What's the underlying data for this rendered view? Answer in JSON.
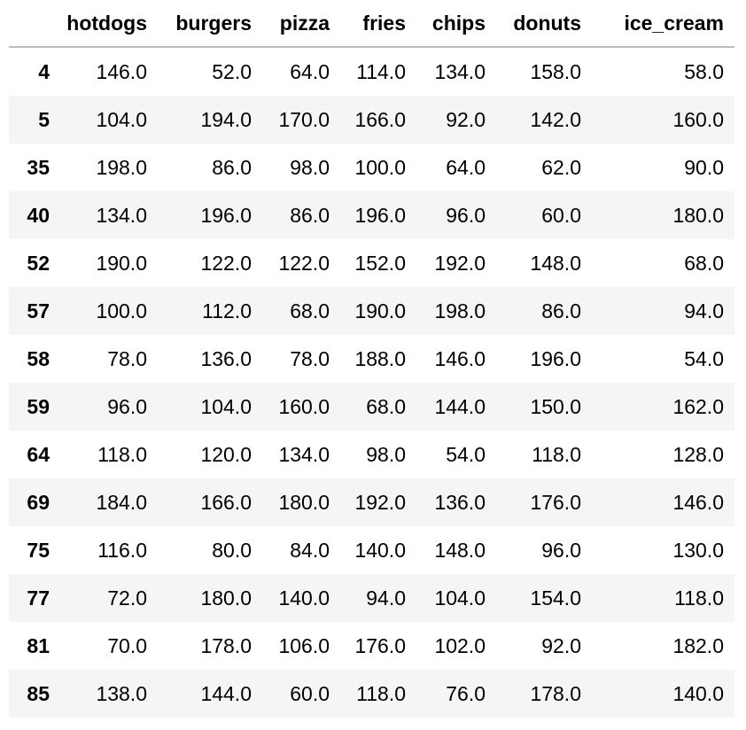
{
  "columns": [
    "",
    "hotdogs",
    "burgers",
    "pizza",
    "fries",
    "chips",
    "donuts",
    "ice_cream"
  ],
  "rows": [
    {
      "index": "4",
      "values": [
        "146.0",
        "52.0",
        "64.0",
        "114.0",
        "134.0",
        "158.0",
        "58.0"
      ]
    },
    {
      "index": "5",
      "values": [
        "104.0",
        "194.0",
        "170.0",
        "166.0",
        "92.0",
        "142.0",
        "160.0"
      ]
    },
    {
      "index": "35",
      "values": [
        "198.0",
        "86.0",
        "98.0",
        "100.0",
        "64.0",
        "62.0",
        "90.0"
      ]
    },
    {
      "index": "40",
      "values": [
        "134.0",
        "196.0",
        "86.0",
        "196.0",
        "96.0",
        "60.0",
        "180.0"
      ]
    },
    {
      "index": "52",
      "values": [
        "190.0",
        "122.0",
        "122.0",
        "152.0",
        "192.0",
        "148.0",
        "68.0"
      ]
    },
    {
      "index": "57",
      "values": [
        "100.0",
        "112.0",
        "68.0",
        "190.0",
        "198.0",
        "86.0",
        "94.0"
      ]
    },
    {
      "index": "58",
      "values": [
        "78.0",
        "136.0",
        "78.0",
        "188.0",
        "146.0",
        "196.0",
        "54.0"
      ]
    },
    {
      "index": "59",
      "values": [
        "96.0",
        "104.0",
        "160.0",
        "68.0",
        "144.0",
        "150.0",
        "162.0"
      ]
    },
    {
      "index": "64",
      "values": [
        "118.0",
        "120.0",
        "134.0",
        "98.0",
        "54.0",
        "118.0",
        "128.0"
      ]
    },
    {
      "index": "69",
      "values": [
        "184.0",
        "166.0",
        "180.0",
        "192.0",
        "136.0",
        "176.0",
        "146.0"
      ]
    },
    {
      "index": "75",
      "values": [
        "116.0",
        "80.0",
        "84.0",
        "140.0",
        "148.0",
        "96.0",
        "130.0"
      ]
    },
    {
      "index": "77",
      "values": [
        "72.0",
        "180.0",
        "140.0",
        "94.0",
        "104.0",
        "154.0",
        "118.0"
      ]
    },
    {
      "index": "81",
      "values": [
        "70.0",
        "178.0",
        "106.0",
        "176.0",
        "102.0",
        "92.0",
        "182.0"
      ]
    },
    {
      "index": "85",
      "values": [
        "138.0",
        "144.0",
        "60.0",
        "118.0",
        "76.0",
        "178.0",
        "140.0"
      ]
    }
  ],
  "colors": {
    "header_rule": "#bdbdbd",
    "stripe": "#f5f5f5",
    "background": "#ffffff",
    "text": "#000000"
  }
}
